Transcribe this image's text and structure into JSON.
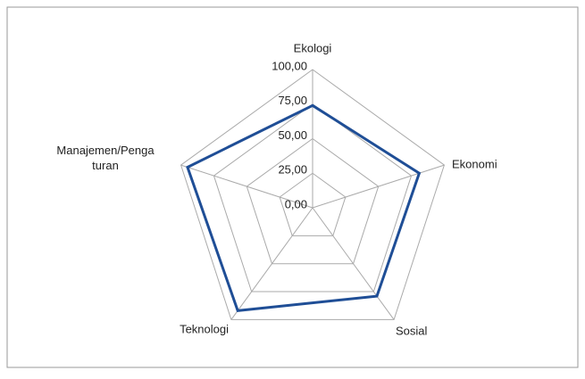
{
  "chart_data": {
    "type": "radar",
    "categories": [
      "Ekologi",
      "Ekonomi",
      "Sosial",
      "Teknologi",
      "Manajemen/Pengaturan"
    ],
    "series": [
      {
        "color": "#1f4e96",
        "values": [
          74,
          81,
          79,
          92,
          95
        ]
      }
    ],
    "ylim": [
      0,
      100
    ],
    "yticks": [
      {
        "value": 0,
        "label": "0,00"
      },
      {
        "value": 25,
        "label": "25,00"
      },
      {
        "value": 50,
        "label": "50,00"
      },
      {
        "value": 75,
        "label": "75,00"
      },
      {
        "value": 100,
        "label": "100,00"
      }
    ],
    "grid": true
  }
}
